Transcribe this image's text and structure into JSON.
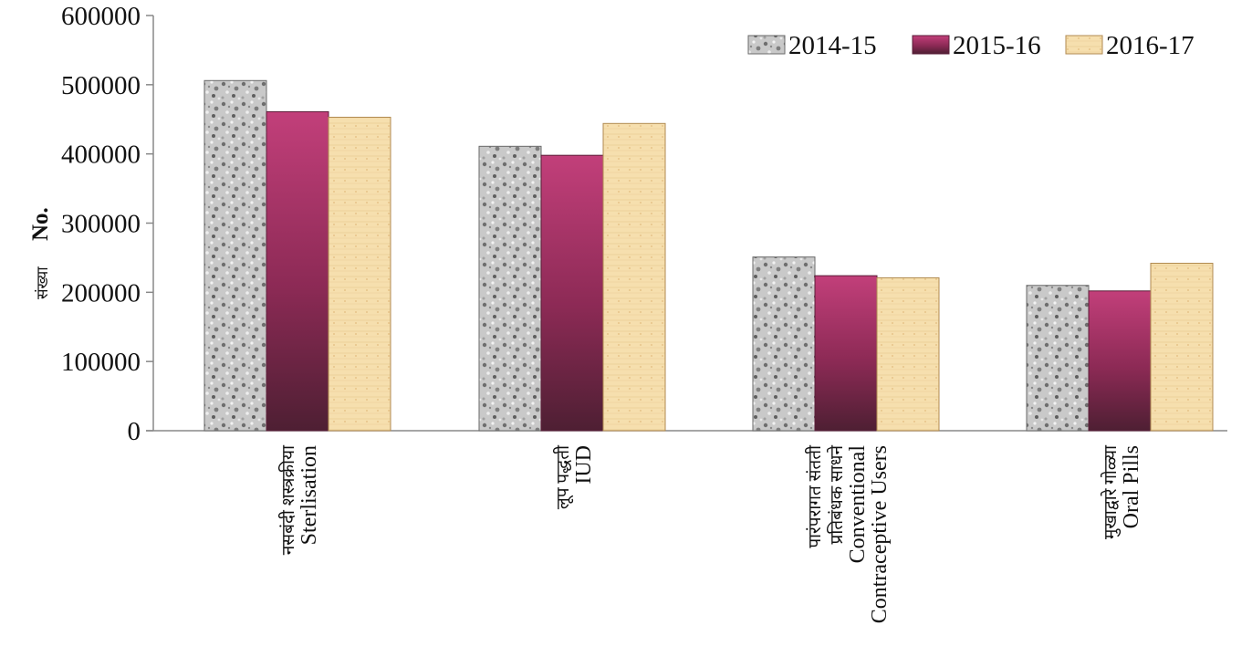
{
  "chart_data": {
    "type": "bar",
    "ylabel": {
      "local": "संख्या",
      "main": "No."
    },
    "ylim": [
      0,
      600000
    ],
    "yticks": [
      0,
      100000,
      200000,
      300000,
      400000,
      500000,
      600000
    ],
    "legend_position": "top-right",
    "categories": [
      {
        "local": [
          "नसबंदी शस्त्रक्रीया"
        ],
        "english": [
          "Sterlisation"
        ]
      },
      {
        "local": [
          "लूप पद्धती"
        ],
        "english": [
          "IUD"
        ]
      },
      {
        "local": [
          "पारंपरागत संतती",
          "प्रतिबंधक साधने"
        ],
        "english": [
          "Conventional",
          "Contraceptive Users"
        ]
      },
      {
        "local": [
          "मुखाद्वारे गोळ्या"
        ],
        "english": [
          "Oral Pills"
        ]
      }
    ],
    "series": [
      {
        "name": "2014-15",
        "values": [
          506000,
          411000,
          251000,
          210000
        ],
        "color": "#b8b8b8"
      },
      {
        "name": "2015-16",
        "values": [
          461000,
          398000,
          224000,
          202000
        ],
        "color": "#9b2c5c"
      },
      {
        "name": "2016-17",
        "values": [
          453000,
          444000,
          221000,
          242000
        ],
        "color": "#f3d9a4"
      }
    ]
  }
}
